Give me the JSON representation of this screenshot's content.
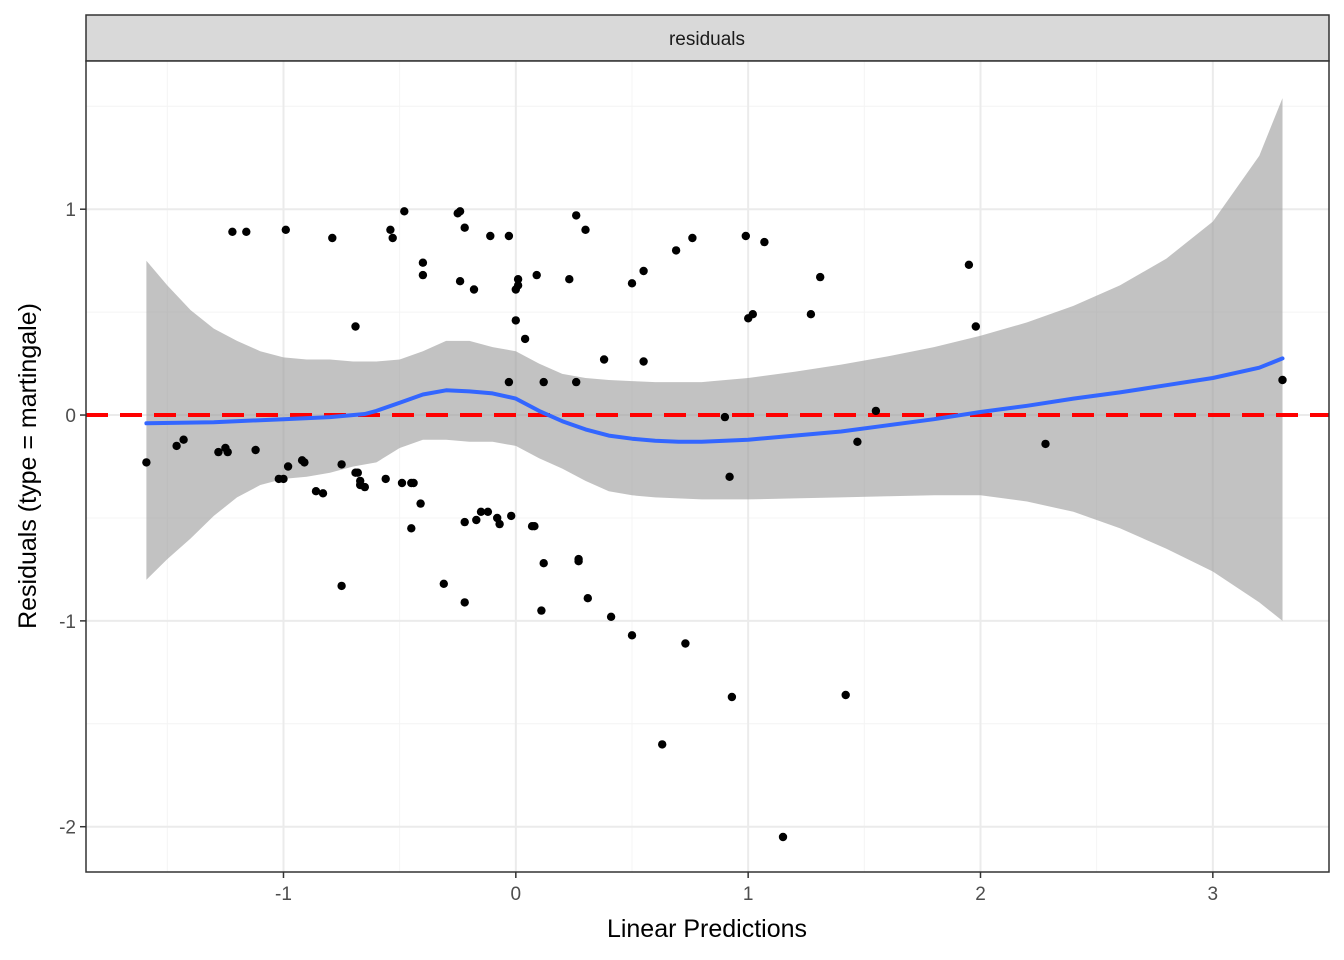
{
  "chart_data": {
    "type": "scatter",
    "strip_label": "residuals",
    "xlabel": "Linear Predictions",
    "ylabel": "Residuals (type = martingale)",
    "xlim": [
      -1.85,
      3.5
    ],
    "ylim": [
      -2.22,
      1.72
    ],
    "x_ticks": [
      -1,
      0,
      1,
      2,
      3
    ],
    "y_ticks": [
      -2,
      -1,
      0,
      1
    ],
    "x_tick_labels": [
      "-1",
      "0",
      "1",
      "2",
      "3"
    ],
    "y_tick_labels": [
      "-2",
      "-1",
      "0",
      "1"
    ],
    "grid": true,
    "reference_line": {
      "y": 0,
      "style": "dashed",
      "color": "#ff0000"
    },
    "colors": {
      "points": "#000000",
      "smooth": "#3366ff",
      "ribbon": "#999999",
      "reference": "#ff0000",
      "strip_bg": "#d9d9d9",
      "grid_major": "#ebebeb",
      "grid_minor": "#f4f4f4"
    },
    "points": [
      [
        -1.59,
        -0.23
      ],
      [
        -1.46,
        -0.15
      ],
      [
        -1.43,
        -0.12
      ],
      [
        -1.28,
        -0.18
      ],
      [
        -1.25,
        -0.16
      ],
      [
        -1.24,
        -0.18
      ],
      [
        -1.22,
        0.89
      ],
      [
        -1.16,
        0.89
      ],
      [
        -1.12,
        -0.17
      ],
      [
        -1.02,
        -0.31
      ],
      [
        -1.0,
        -0.31
      ],
      [
        -0.99,
        0.9
      ],
      [
        -0.98,
        -0.25
      ],
      [
        -0.92,
        -0.22
      ],
      [
        -0.91,
        -0.23
      ],
      [
        -0.86,
        -0.37
      ],
      [
        -0.83,
        -0.38
      ],
      [
        -0.79,
        0.86
      ],
      [
        -0.75,
        -0.24
      ],
      [
        -0.75,
        -0.83
      ],
      [
        -0.69,
        0.43
      ],
      [
        -0.69,
        -0.28
      ],
      [
        -0.68,
        -0.28
      ],
      [
        -0.67,
        -0.32
      ],
      [
        -0.67,
        -0.34
      ],
      [
        -0.65,
        -0.35
      ],
      [
        -0.56,
        -0.31
      ],
      [
        -0.54,
        0.9
      ],
      [
        -0.53,
        0.86
      ],
      [
        -0.49,
        -0.33
      ],
      [
        -0.48,
        0.99
      ],
      [
        -0.45,
        -0.55
      ],
      [
        -0.45,
        -0.33
      ],
      [
        -0.44,
        -0.33
      ],
      [
        -0.41,
        -0.43
      ],
      [
        -0.4,
        0.74
      ],
      [
        -0.4,
        0.68
      ],
      [
        -0.31,
        -0.82
      ],
      [
        -0.25,
        0.98
      ],
      [
        -0.24,
        0.99
      ],
      [
        -0.24,
        0.65
      ],
      [
        -0.22,
        0.91
      ],
      [
        -0.22,
        -0.52
      ],
      [
        -0.22,
        -0.91
      ],
      [
        -0.18,
        0.61
      ],
      [
        -0.17,
        -0.51
      ],
      [
        -0.15,
        -0.47
      ],
      [
        -0.12,
        -0.47
      ],
      [
        -0.11,
        0.87
      ],
      [
        -0.08,
        -0.5
      ],
      [
        -0.07,
        -0.53
      ],
      [
        -0.03,
        0.87
      ],
      [
        -0.03,
        0.16
      ],
      [
        -0.02,
        -0.49
      ],
      [
        0.0,
        0.61
      ],
      [
        0.0,
        0.46
      ],
      [
        0.01,
        0.63
      ],
      [
        0.01,
        0.66
      ],
      [
        0.04,
        0.37
      ],
      [
        0.07,
        -0.54
      ],
      [
        0.08,
        -0.54
      ],
      [
        0.09,
        0.68
      ],
      [
        0.11,
        -0.95
      ],
      [
        0.12,
        -0.72
      ],
      [
        0.12,
        0.16
      ],
      [
        0.23,
        0.66
      ],
      [
        0.26,
        0.97
      ],
      [
        0.26,
        0.16
      ],
      [
        0.27,
        -0.7
      ],
      [
        0.27,
        -0.71
      ],
      [
        0.3,
        0.9
      ],
      [
        0.31,
        -0.89
      ],
      [
        0.38,
        0.27
      ],
      [
        0.41,
        -0.98
      ],
      [
        0.5,
        0.64
      ],
      [
        0.5,
        -1.07
      ],
      [
        0.55,
        0.7
      ],
      [
        0.55,
        0.26
      ],
      [
        0.63,
        -1.6
      ],
      [
        0.69,
        0.8
      ],
      [
        0.73,
        -1.11
      ],
      [
        0.76,
        0.86
      ],
      [
        0.9,
        -0.01
      ],
      [
        0.92,
        -0.3
      ],
      [
        0.93,
        -1.37
      ],
      [
        0.99,
        0.87
      ],
      [
        1.0,
        0.47
      ],
      [
        1.02,
        0.49
      ],
      [
        1.07,
        0.84
      ],
      [
        1.15,
        -2.05
      ],
      [
        1.27,
        0.49
      ],
      [
        1.31,
        0.67
      ],
      [
        1.42,
        -1.36
      ],
      [
        1.47,
        -0.13
      ],
      [
        1.55,
        0.02
      ],
      [
        1.95,
        0.73
      ],
      [
        1.98,
        0.43
      ],
      [
        2.28,
        -0.14
      ],
      [
        3.3,
        0.17
      ]
    ],
    "smooth": [
      [
        -1.59,
        -0.04
      ],
      [
        -1.3,
        -0.035
      ],
      [
        -1.0,
        -0.02
      ],
      [
        -0.8,
        -0.01
      ],
      [
        -0.65,
        0.005
      ],
      [
        -0.6,
        0.02
      ],
      [
        -0.5,
        0.06
      ],
      [
        -0.4,
        0.1
      ],
      [
        -0.3,
        0.12
      ],
      [
        -0.2,
        0.115
      ],
      [
        -0.1,
        0.105
      ],
      [
        0.0,
        0.08
      ],
      [
        0.1,
        0.02
      ],
      [
        0.2,
        -0.03
      ],
      [
        0.3,
        -0.07
      ],
      [
        0.4,
        -0.1
      ],
      [
        0.5,
        -0.115
      ],
      [
        0.6,
        -0.125
      ],
      [
        0.7,
        -0.13
      ],
      [
        0.8,
        -0.13
      ],
      [
        1.0,
        -0.12
      ],
      [
        1.2,
        -0.1
      ],
      [
        1.4,
        -0.08
      ],
      [
        1.6,
        -0.05
      ],
      [
        1.8,
        -0.02
      ],
      [
        2.0,
        0.015
      ],
      [
        2.2,
        0.045
      ],
      [
        2.4,
        0.08
      ],
      [
        2.6,
        0.11
      ],
      [
        2.8,
        0.145
      ],
      [
        3.0,
        0.18
      ],
      [
        3.2,
        0.23
      ],
      [
        3.3,
        0.275
      ]
    ],
    "ribbon_upper": [
      [
        -1.59,
        0.75
      ],
      [
        -1.5,
        0.63
      ],
      [
        -1.4,
        0.51
      ],
      [
        -1.3,
        0.42
      ],
      [
        -1.2,
        0.36
      ],
      [
        -1.1,
        0.31
      ],
      [
        -1.0,
        0.28
      ],
      [
        -0.9,
        0.27
      ],
      [
        -0.8,
        0.27
      ],
      [
        -0.7,
        0.26
      ],
      [
        -0.6,
        0.26
      ],
      [
        -0.5,
        0.27
      ],
      [
        -0.4,
        0.31
      ],
      [
        -0.3,
        0.36
      ],
      [
        -0.2,
        0.36
      ],
      [
        -0.1,
        0.33
      ],
      [
        0.0,
        0.31
      ],
      [
        0.1,
        0.25
      ],
      [
        0.2,
        0.2
      ],
      [
        0.3,
        0.18
      ],
      [
        0.4,
        0.17
      ],
      [
        0.5,
        0.165
      ],
      [
        0.6,
        0.16
      ],
      [
        0.8,
        0.16
      ],
      [
        1.0,
        0.18
      ],
      [
        1.2,
        0.21
      ],
      [
        1.4,
        0.245
      ],
      [
        1.6,
        0.285
      ],
      [
        1.8,
        0.33
      ],
      [
        2.0,
        0.385
      ],
      [
        2.2,
        0.45
      ],
      [
        2.4,
        0.53
      ],
      [
        2.6,
        0.63
      ],
      [
        2.8,
        0.76
      ],
      [
        3.0,
        0.94
      ],
      [
        3.2,
        1.26
      ],
      [
        3.3,
        1.54
      ]
    ],
    "ribbon_lower": [
      [
        -1.59,
        -0.8
      ],
      [
        -1.5,
        -0.7
      ],
      [
        -1.4,
        -0.6
      ],
      [
        -1.3,
        -0.49
      ],
      [
        -1.2,
        -0.4
      ],
      [
        -1.1,
        -0.34
      ],
      [
        -1.0,
        -0.31
      ],
      [
        -0.9,
        -0.3
      ],
      [
        -0.8,
        -0.28
      ],
      [
        -0.7,
        -0.25
      ],
      [
        -0.6,
        -0.23
      ],
      [
        -0.5,
        -0.16
      ],
      [
        -0.4,
        -0.12
      ],
      [
        -0.3,
        -0.12
      ],
      [
        -0.2,
        -0.13
      ],
      [
        -0.1,
        -0.13
      ],
      [
        0.0,
        -0.15
      ],
      [
        0.1,
        -0.21
      ],
      [
        0.2,
        -0.26
      ],
      [
        0.3,
        -0.32
      ],
      [
        0.4,
        -0.37
      ],
      [
        0.5,
        -0.39
      ],
      [
        0.6,
        -0.4
      ],
      [
        0.8,
        -0.41
      ],
      [
        1.0,
        -0.41
      ],
      [
        1.2,
        -0.405
      ],
      [
        1.4,
        -0.4
      ],
      [
        1.6,
        -0.395
      ],
      [
        1.8,
        -0.39
      ],
      [
        2.0,
        -0.39
      ],
      [
        2.2,
        -0.42
      ],
      [
        2.4,
        -0.47
      ],
      [
        2.6,
        -0.55
      ],
      [
        2.8,
        -0.65
      ],
      [
        3.0,
        -0.76
      ],
      [
        3.2,
        -0.91
      ],
      [
        3.3,
        -1.0
      ]
    ]
  }
}
